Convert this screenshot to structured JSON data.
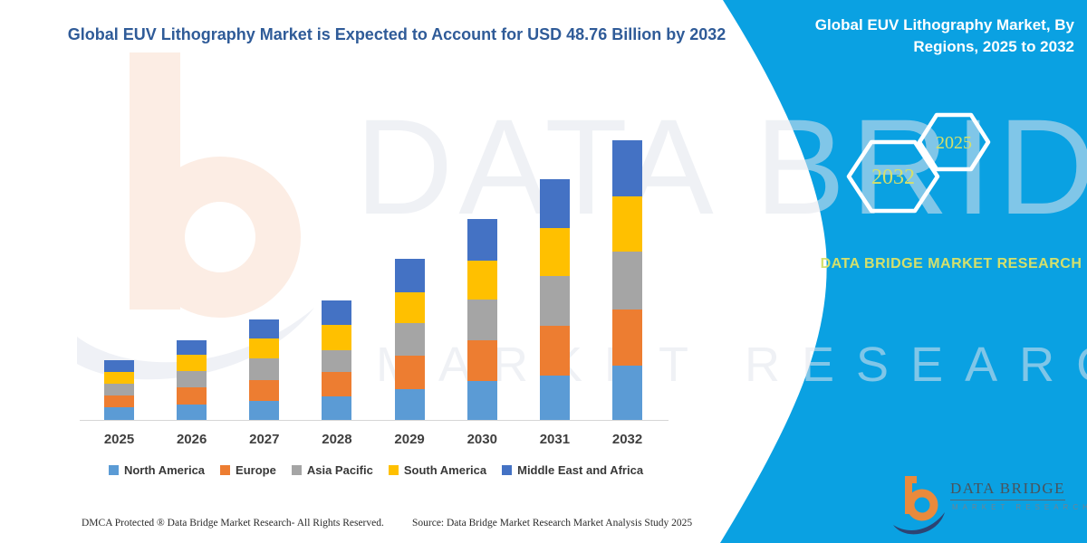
{
  "title": "Global EUV Lithography Market is Expected to Account for USD 48.76 Billion by 2032",
  "sidebar": {
    "title": "Global EUV Lithography Market, By Regions, 2025 to 2032",
    "hexagon_large": "2032",
    "hexagon_small": "2025",
    "brand_text": "DATA BRIDGE MARKET RESEARCH",
    "panel_color": "#0AA1E2",
    "hex_text_color": "#D5E06B"
  },
  "logo": {
    "name": "DATA BRIDGE",
    "subtitle": "MARKET RESEARCH",
    "orange": "#E98A3C",
    "navy": "#2D4373"
  },
  "watermark": {
    "line1": "DATA BRIDGE",
    "line2": "MARKET RESEARCH"
  },
  "footer": {
    "left": "DMCA Protected ® Data Bridge Market Research-  All Rights Reserved.",
    "right": "Source: Data Bridge Market Research  Market Analysis Study 2025"
  },
  "chart_data": {
    "type": "bar",
    "stacked": true,
    "title": "Global EUV Lithography Market is Expected to Account for USD 48.76 Billion by 2032",
    "unit": "USD Billion",
    "categories": [
      "2025",
      "2026",
      "2027",
      "2028",
      "2029",
      "2030",
      "2031",
      "2032"
    ],
    "series": [
      {
        "name": "North America",
        "color": "#5B9BD5",
        "values": [
          2.2,
          2.7,
          3.3,
          4.1,
          5.4,
          6.8,
          7.7,
          9.5
        ]
      },
      {
        "name": "Europe",
        "color": "#ED7D31",
        "values": [
          2.1,
          3.0,
          3.6,
          4.3,
          5.8,
          7.1,
          8.7,
          9.8
        ]
      },
      {
        "name": "Asia Pacific",
        "color": "#A5A5A5",
        "values": [
          2.0,
          2.8,
          3.8,
          3.8,
          5.7,
          7.1,
          8.7,
          10.1
        ]
      },
      {
        "name": "South America",
        "color": "#FFC000",
        "values": [
          2.1,
          2.8,
          3.5,
          4.4,
          5.4,
          6.8,
          8.4,
          9.6
        ]
      },
      {
        "name": "Middle East and Africa",
        "color": "#4472C4",
        "values": [
          2.0,
          2.6,
          3.3,
          4.3,
          5.8,
          7.3,
          8.4,
          9.76
        ]
      }
    ],
    "totals": [
      10.4,
      13.9,
      17.5,
      20.9,
      28.1,
      35.1,
      41.9,
      48.76
    ],
    "ylim": [
      0,
      50
    ],
    "xlabel": "",
    "ylabel": "",
    "grid": false,
    "y_axis_shown": false,
    "legend_position": "bottom"
  }
}
